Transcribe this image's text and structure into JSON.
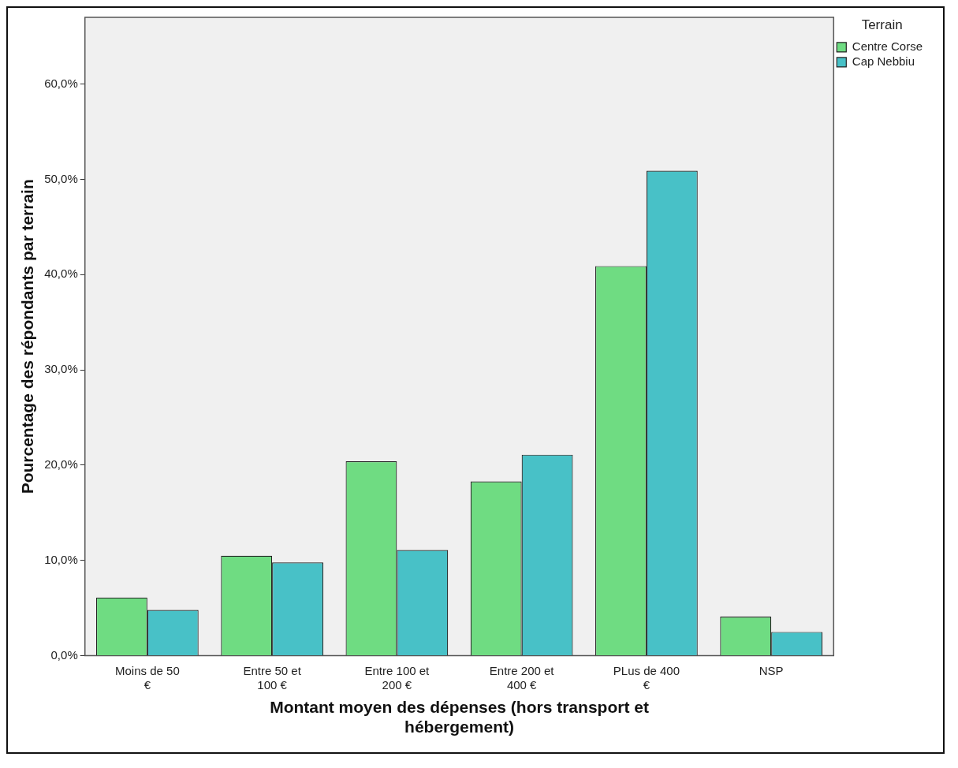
{
  "chart_data": {
    "type": "bar",
    "xlabel": "Montant moyen des dépenses (hors transport et hébergement)",
    "ylabel": "Pourcentage des répondants par terrain",
    "legend_title": "Terrain",
    "legend": "top right",
    "categories": [
      "Moins de 50 €",
      "Entre 50 et 100 €",
      "Entre 100 et 200 €",
      "Entre 200 et 400 €",
      "PLus de 400 €",
      "NSP"
    ],
    "series": [
      {
        "name": "Centre Corse",
        "color": "#6fdc82",
        "values": [
          6.1,
          10.5,
          20.4,
          18.3,
          40.9,
          4.1
        ]
      },
      {
        "name": "Cap Nebbiu",
        "color": "#48c1c7",
        "values": [
          4.8,
          9.8,
          11.1,
          21.1,
          50.9,
          2.5
        ]
      }
    ],
    "ylim": [
      0,
      67
    ],
    "yticks": [
      {
        "value": 0,
        "label": "0,0%"
      },
      {
        "value": 10,
        "label": "10,0%"
      },
      {
        "value": 20,
        "label": "20,0%"
      },
      {
        "value": 30,
        "label": "30,0%"
      },
      {
        "value": 40,
        "label": "40,0%"
      },
      {
        "value": 50,
        "label": "50,0%"
      },
      {
        "value": 60,
        "label": "60,0%"
      }
    ],
    "grid": false
  }
}
